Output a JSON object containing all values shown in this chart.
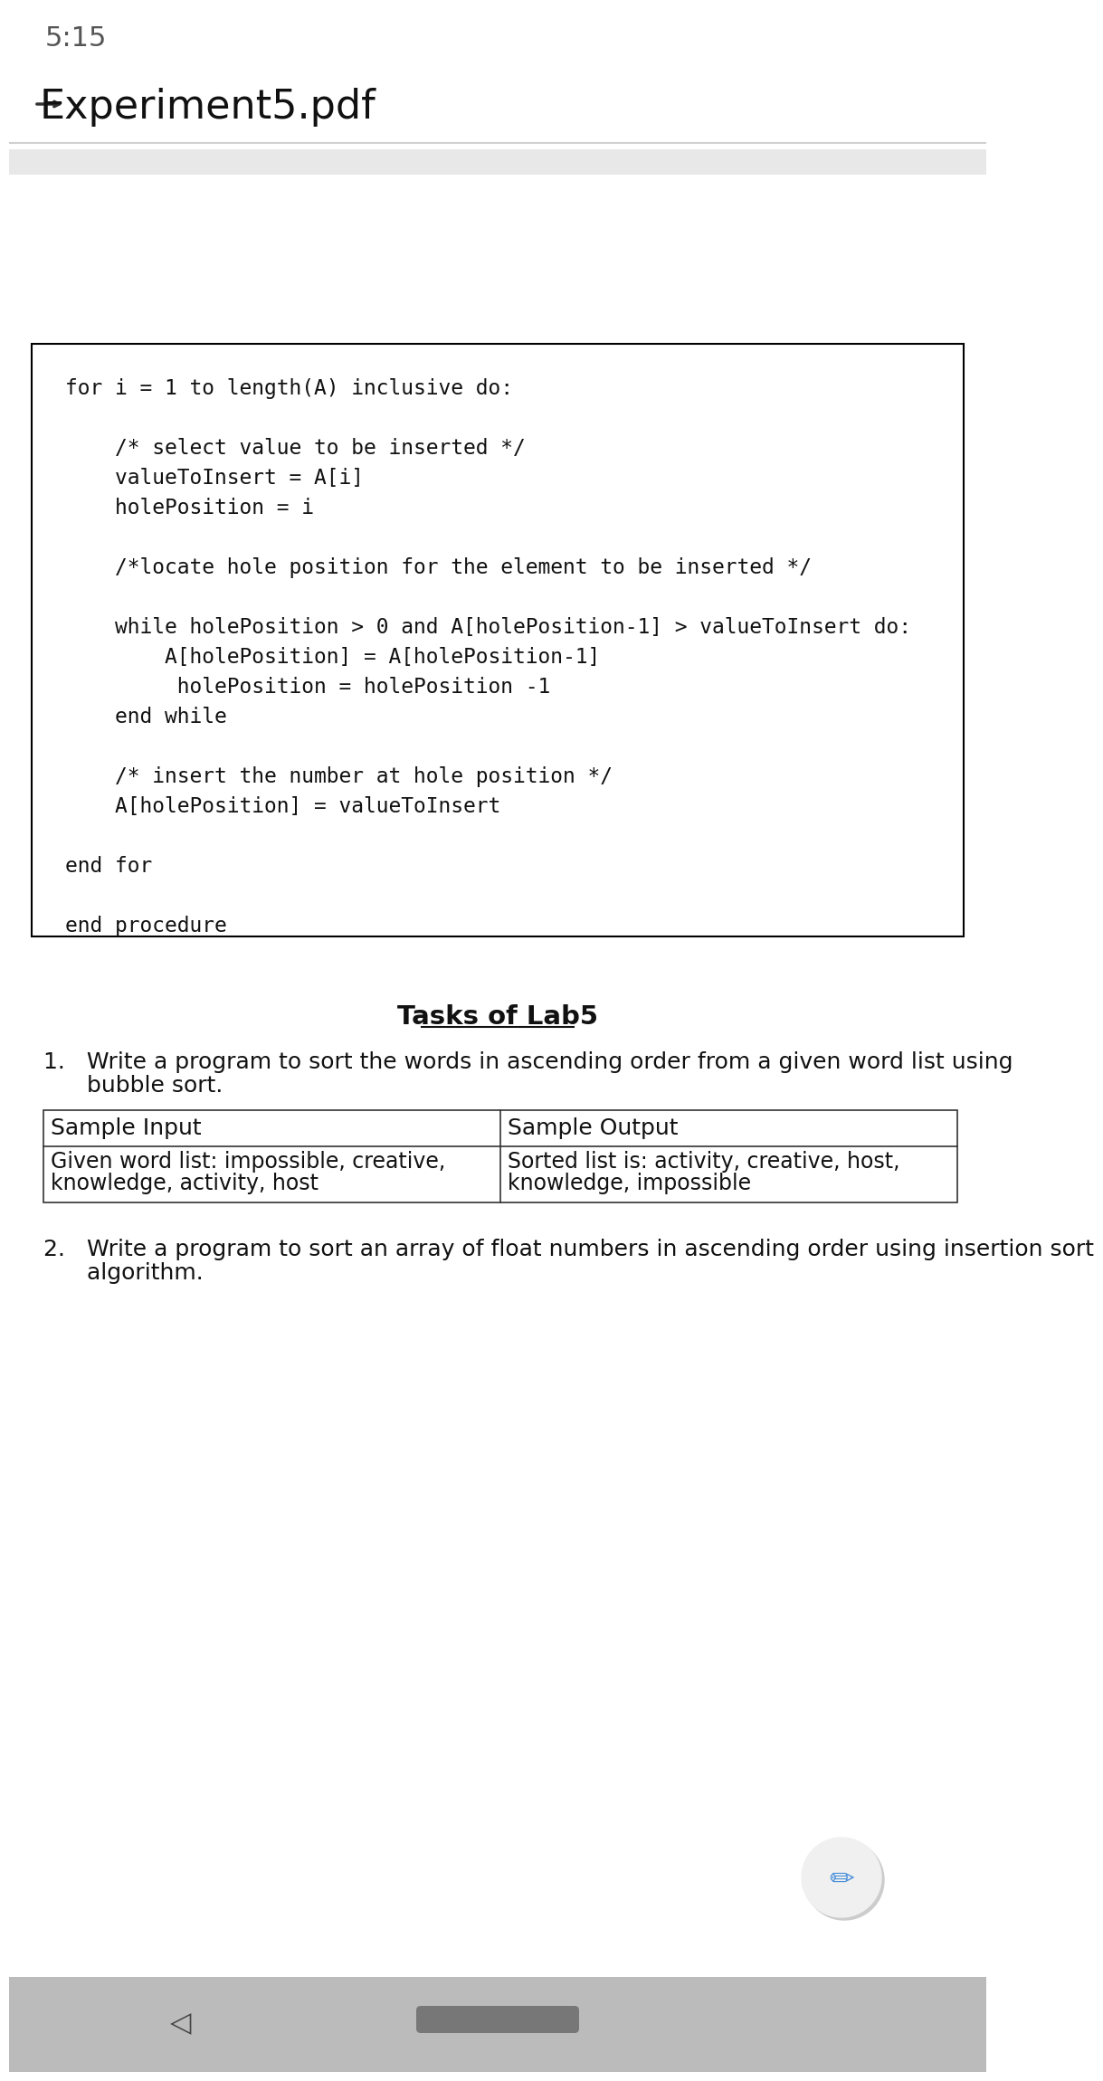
{
  "bg_color": "#ffffff",
  "status_time": "5:15",
  "header_title": "Experiment5.pdf",
  "separator_color": "#d0d0d0",
  "gray_bar_color": "#e8e8e8",
  "code_box_border": "#000000",
  "code_lines": [
    "for i = 1 to length(A) inclusive do:",
    "",
    "    /* select value to be inserted */",
    "    valueToInsert = A[i]",
    "    holePosition = i",
    "",
    "    /*locate hole position for the element to be inserted */",
    "",
    "    while holePosition > 0 and A[holePosition-1] > valueToInsert do:",
    "        A[holePosition] = A[holePosition-1]",
    "         holePosition = holePosition -1",
    "    end while",
    "",
    "    /* insert the number at hole position */",
    "    A[holePosition] = valueToInsert",
    "",
    "end for",
    "",
    "end procedure"
  ],
  "tasks_title": "Tasks of Lab5",
  "table_headers": [
    "Sample Input",
    "Sample Output"
  ],
  "table_col1_line1": "Given word list: impossible, creative,",
  "table_col1_line2": "knowledge, activity, host",
  "table_col2_line1": "Sorted list is: activity, creative, host,",
  "table_col2_line2": "knowledge, impossible",
  "task1_line1": "1.   Write a program to sort the words in ascending order from a given word list using",
  "task1_line2": "      bubble sort.",
  "task2_line1": "2.   Write a program to sort an array of float numbers in ascending order using insertion sort",
  "task2_line2": "      algorithm.",
  "bottom_bar_color": "#bbbbbb",
  "fab_color": "#f0f0f0",
  "fab_shadow_color": "#cccccc",
  "fab_icon_color": "#4a90d9"
}
